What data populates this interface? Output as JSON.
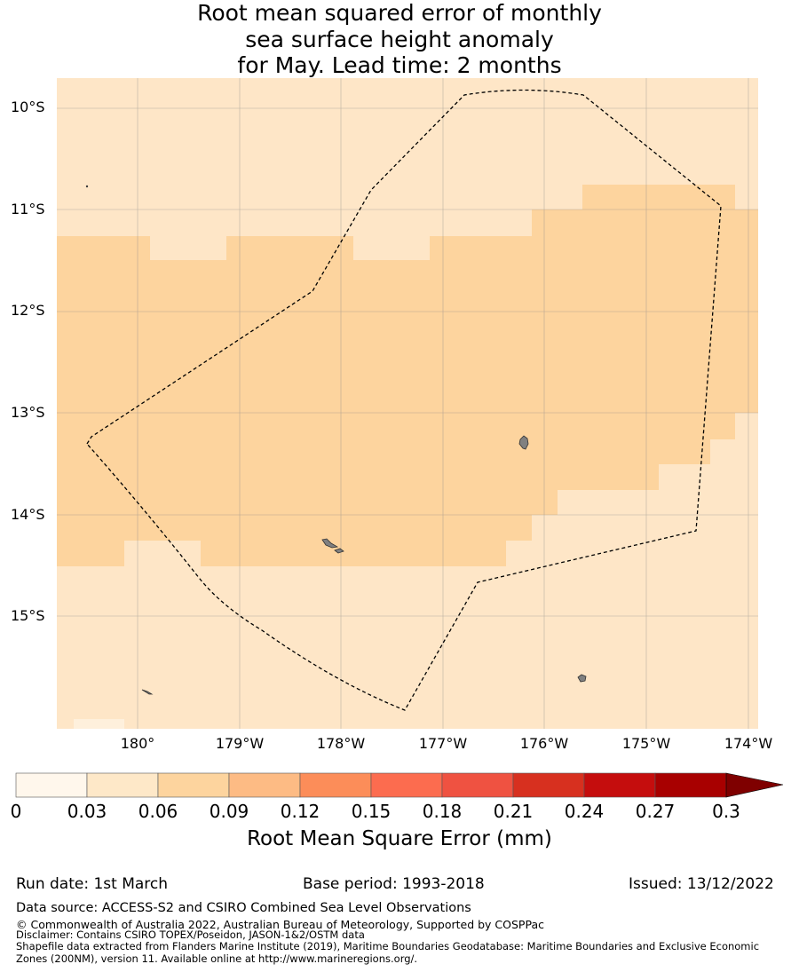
{
  "title": {
    "line1": "Root mean squared error of monthly",
    "line2": "sea surface height anomaly",
    "line3": "for May. Lead time: 2 months"
  },
  "map": {
    "lat_labels": [
      "10°S",
      "11°S",
      "12°S",
      "13°S",
      "14°S",
      "15°S"
    ],
    "lon_labels": [
      "180°",
      "179°W",
      "178°W",
      "177°W",
      "176°W",
      "175°W",
      "174°W"
    ],
    "colors": {
      "lightest": "#fee6c7",
      "medium": "#fdd49e",
      "land": "#808080",
      "grid": "#999999"
    }
  },
  "colorbar": {
    "ticks": [
      "0",
      "0.03",
      "0.06",
      "0.09",
      "0.12",
      "0.15",
      "0.18",
      "0.21",
      "0.24",
      "0.27",
      "0.3"
    ],
    "colors": [
      "#fff7ec",
      "#fee8c8",
      "#fdd49e",
      "#fdbb84",
      "#fc8d59",
      "#fc6c4f",
      "#ef5241",
      "#d7301f",
      "#c50d0d",
      "#a80000",
      "#7f0000"
    ],
    "label": "Root Mean Square Error (mm)"
  },
  "footer": {
    "run_date": "Run date: 1st March",
    "base_period": "Base period: 1993-2018",
    "issued": "Issued: 13/12/2022",
    "data_source": "Data source: ACCESS-S2 and CSIRO Combined Sea Level Observations",
    "copyright": "© Commonwealth of Australia 2022, Australian Bureau of Meteorology, Supported by COSPPac",
    "disclaimer": "Disclaimer: Contains CSIRO TOPEX/Poseidon, JASON-1&2/OSTM data",
    "shapefile_line1": "Shapefile data extracted from Flanders Marine Institute (2019), Maritime Boundaries Geodatabase: Maritime Boundaries and Exclusive Economic",
    "shapefile_line2": "Zones (200NM), version 11. Available online at http://www.marineregions.org/."
  }
}
